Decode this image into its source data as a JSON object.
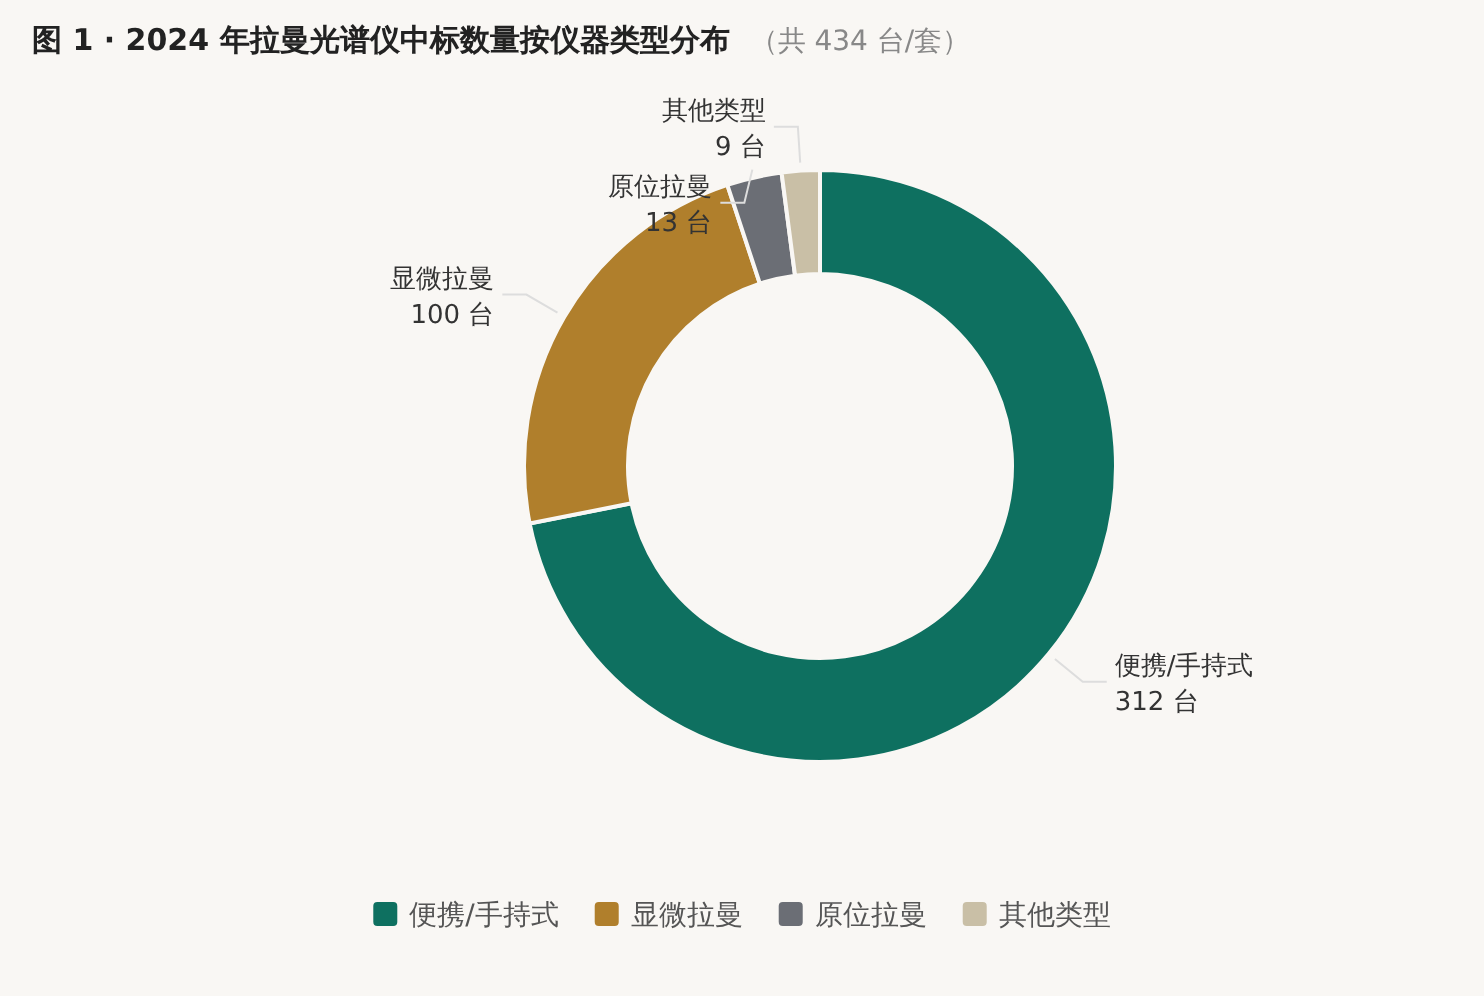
{
  "chart_data": {
    "type": "donut",
    "title": "图 1 · 2024 年拉曼光谱仪中标数量按仪器类型分布",
    "subtitle": "（共 434 台/套）",
    "categories": [
      "便携/手持式",
      "显微拉曼",
      "原位拉曼",
      "其他类型"
    ],
    "values": [
      312,
      100,
      13,
      9
    ],
    "value_labels": [
      "312 台",
      "100 台",
      "13 台",
      "9 台"
    ],
    "colors": [
      "#0e7060",
      "#b07f2c",
      "#6b6e75",
      "#c9bfa6"
    ],
    "legend": "bottom"
  }
}
